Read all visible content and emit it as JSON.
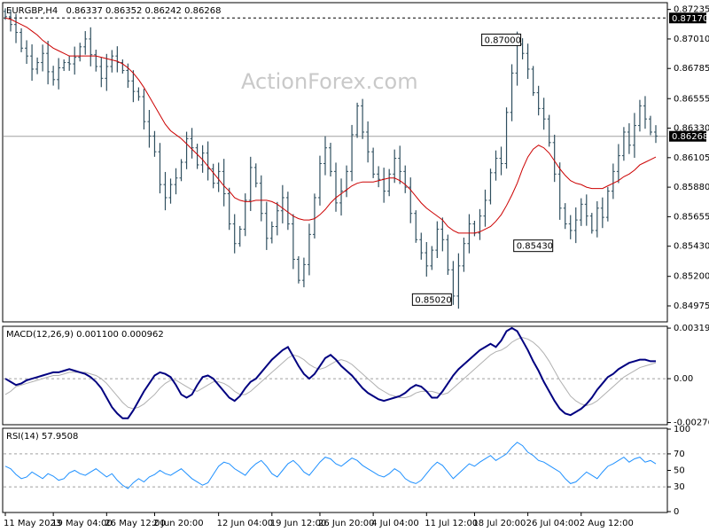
{
  "watermark": "ActionForex.com",
  "colors": {
    "bars": "#2f4f5f",
    "ma": "#cc0000",
    "macd": "#000080",
    "signal": "#b0b0b0",
    "rsi": "#1e90ff",
    "grid": "#a0a0a0",
    "frame": "#000000"
  },
  "chart_data": [
    {
      "type": "candlestick",
      "title": "EURGBP,H4",
      "header_values": "0.86337 0.86352 0.86242 0.86268",
      "ylim": [
        0.8486,
        0.8728
      ],
      "y_ticks": [
        "0.87235",
        "0.87010",
        "0.86785",
        "0.86555",
        "0.86330",
        "0.86105",
        "0.85880",
        "0.85655",
        "0.85430",
        "0.85200",
        "0.84975"
      ],
      "y_tick_values": [
        0.87235,
        0.8701,
        0.86785,
        0.86555,
        0.8633,
        0.86105,
        0.8588,
        0.85655,
        0.8543,
        0.852,
        0.84975
      ],
      "price_labels": [
        {
          "text": "0.87170",
          "value": 0.8717,
          "dashed_line": true
        },
        {
          "text": "0.86268",
          "value": 0.86268,
          "line": true
        }
      ],
      "annotations": [
        {
          "text": "0.87000",
          "value": 0.87,
          "x_index": 97
        },
        {
          "text": "0.85430",
          "value": 0.8543,
          "x_index": 103
        },
        {
          "text": "0.85020",
          "value": 0.8502,
          "x_index": 84
        }
      ],
      "close": [
        0.8718,
        0.8712,
        0.8706,
        0.8694,
        0.8688,
        0.8678,
        0.8683,
        0.869,
        0.8676,
        0.867,
        0.8679,
        0.8683,
        0.8682,
        0.8687,
        0.8695,
        0.8701,
        0.8689,
        0.868,
        0.8671,
        0.868,
        0.8688,
        0.8683,
        0.8677,
        0.8669,
        0.8661,
        0.8657,
        0.8638,
        0.8627,
        0.8615,
        0.859,
        0.858,
        0.859,
        0.8595,
        0.8607,
        0.8625,
        0.8618,
        0.8605,
        0.8614,
        0.8602,
        0.8591,
        0.86,
        0.8583,
        0.856,
        0.8545,
        0.8556,
        0.8578,
        0.8603,
        0.8591,
        0.8568,
        0.8549,
        0.8558,
        0.857,
        0.858,
        0.856,
        0.8533,
        0.8517,
        0.8529,
        0.8552,
        0.858,
        0.8606,
        0.8618,
        0.86,
        0.8576,
        0.8585,
        0.86,
        0.8628,
        0.865,
        0.863,
        0.8615,
        0.8598,
        0.8594,
        0.8585,
        0.8598,
        0.861,
        0.86,
        0.8588,
        0.8568,
        0.8548,
        0.8538,
        0.8528,
        0.854,
        0.8556,
        0.8548,
        0.8525,
        0.8505,
        0.8528,
        0.8545,
        0.856,
        0.8553,
        0.8566,
        0.8578,
        0.8599,
        0.861,
        0.8606,
        0.8645,
        0.8675,
        0.8697,
        0.869,
        0.8678,
        0.866,
        0.8648,
        0.864,
        0.8622,
        0.8598,
        0.8572,
        0.856,
        0.8555,
        0.8563,
        0.8575,
        0.8566,
        0.8555,
        0.8572,
        0.8565,
        0.8585,
        0.86,
        0.8612,
        0.863,
        0.862,
        0.8635,
        0.865,
        0.864,
        0.863,
        0.8627
      ],
      "ma_close": [
        0.8717,
        0.8716,
        0.8714,
        0.8712,
        0.871,
        0.8707,
        0.8704,
        0.87,
        0.8697,
        0.8694,
        0.8692,
        0.869,
        0.8688,
        0.8688,
        0.8688,
        0.8688,
        0.8688,
        0.8688,
        0.8687,
        0.8686,
        0.8685,
        0.8684,
        0.8682,
        0.8679,
        0.8675,
        0.867,
        0.8664,
        0.8657,
        0.865,
        0.8643,
        0.8636,
        0.8631,
        0.8628,
        0.8625,
        0.8621,
        0.8617,
        0.8613,
        0.8609,
        0.8604,
        0.8599,
        0.8594,
        0.8589,
        0.8585,
        0.858,
        0.8578,
        0.8577,
        0.8577,
        0.8578,
        0.8578,
        0.8578,
        0.8577,
        0.8575,
        0.8572,
        0.8569,
        0.8566,
        0.8564,
        0.8563,
        0.8563,
        0.8564,
        0.8567,
        0.8571,
        0.8576,
        0.858,
        0.8583,
        0.8586,
        0.8589,
        0.8591,
        0.8592,
        0.8592,
        0.8592,
        0.8593,
        0.8594,
        0.8595,
        0.8595,
        0.8593,
        0.859,
        0.8586,
        0.8581,
        0.8576,
        0.8572,
        0.8569,
        0.8566,
        0.8563,
        0.8558,
        0.8555,
        0.8553,
        0.8553,
        0.8553,
        0.8553,
        0.8554,
        0.8556,
        0.8558,
        0.8562,
        0.8567,
        0.8574,
        0.8582,
        0.8591,
        0.8602,
        0.8611,
        0.8617,
        0.862,
        0.8618,
        0.8614,
        0.8608,
        0.8602,
        0.8597,
        0.8593,
        0.8591,
        0.859,
        0.8588,
        0.8587,
        0.8587,
        0.8587,
        0.8589,
        0.8591,
        0.8593,
        0.8596,
        0.8598,
        0.8601,
        0.8605,
        0.8607,
        0.8609,
        0.8611
      ]
    },
    {
      "type": "line",
      "title": "MACD(12,26,9) 0.001100 0.000962",
      "ylim": [
        -0.00285,
        0.00325
      ],
      "y_ticks": [
        "0.00319",
        "0.00",
        "-0.002769"
      ],
      "y_tick_values": [
        0.00319,
        0.0,
        -0.002769
      ],
      "series": [
        {
          "name": "MACD",
          "values": [
            0.0,
            -0.0002,
            -0.0004,
            -0.0003,
            -0.0001,
            0.0,
            0.0001,
            0.0002,
            0.0003,
            0.0004,
            0.0004,
            0.0005,
            0.0006,
            0.0005,
            0.0004,
            0.0003,
            0.0001,
            -0.0002,
            -0.0006,
            -0.0012,
            -0.0018,
            -0.0022,
            -0.0025,
            -0.0025,
            -0.002,
            -0.0014,
            -0.0008,
            -0.0003,
            0.0002,
            0.0004,
            0.0003,
            0.0001,
            -0.0004,
            -0.001,
            -0.0012,
            -0.001,
            -0.0004,
            0.0001,
            0.0002,
            0.0,
            -0.0004,
            -0.0008,
            -0.0012,
            -0.0014,
            -0.0011,
            -0.0006,
            -0.0002,
            0.0,
            0.0004,
            0.0008,
            0.0012,
            0.0015,
            0.0018,
            0.002,
            0.0014,
            0.0008,
            0.0003,
            0.0,
            0.0003,
            0.0008,
            0.0013,
            0.0015,
            0.0012,
            0.0008,
            0.0005,
            0.0002,
            -0.0002,
            -0.0006,
            -0.0009,
            -0.0011,
            -0.0013,
            -0.0014,
            -0.0013,
            -0.0012,
            -0.0011,
            -0.0009,
            -0.0006,
            -0.0004,
            -0.0005,
            -0.0008,
            -0.0012,
            -0.0012,
            -0.0008,
            -0.0003,
            0.0002,
            0.0006,
            0.0009,
            0.0012,
            0.0015,
            0.0018,
            0.002,
            0.0022,
            0.002,
            0.0024,
            0.003,
            0.0032,
            0.003,
            0.0024,
            0.0018,
            0.0011,
            0.0005,
            -0.0002,
            -0.0008,
            -0.0014,
            -0.0019,
            -0.0022,
            -0.0023,
            -0.0021,
            -0.0019,
            -0.0016,
            -0.0012,
            -0.0007,
            -0.0003,
            0.0001,
            0.0003,
            0.0006,
            0.0008,
            0.001,
            0.0011,
            0.0012,
            0.0012,
            0.0011,
            0.0011
          ]
        },
        {
          "name": "Signal",
          "values": [
            -0.001,
            -0.0008,
            -0.0005,
            -0.0004,
            -0.0003,
            -0.0002,
            -0.0001,
            0.0,
            0.0001,
            0.0002,
            0.0002,
            0.0003,
            0.0004,
            0.0004,
            0.0004,
            0.0004,
            0.0003,
            0.0002,
            0.0,
            -0.0003,
            -0.0007,
            -0.0011,
            -0.0015,
            -0.0018,
            -0.0019,
            -0.0018,
            -0.0016,
            -0.0013,
            -0.001,
            -0.0006,
            -0.0003,
            -0.0001,
            -0.0001,
            -0.0003,
            -0.0005,
            -0.0007,
            -0.0008,
            -0.0006,
            -0.0004,
            -0.0002,
            -0.0002,
            -0.0003,
            -0.0005,
            -0.0008,
            -0.001,
            -0.001,
            -0.0008,
            -0.0005,
            -0.0002,
            0.0001,
            0.0004,
            0.0007,
            0.001,
            0.0013,
            0.0015,
            0.0014,
            0.0012,
            0.0009,
            0.0007,
            0.0006,
            0.0007,
            0.0009,
            0.0011,
            0.0012,
            0.0011,
            0.0009,
            0.0006,
            0.0003,
            0.0,
            -0.0003,
            -0.0006,
            -0.0008,
            -0.001,
            -0.0011,
            -0.0012,
            -0.0012,
            -0.0011,
            -0.0009,
            -0.0008,
            -0.0008,
            -0.0008,
            -0.0009,
            -0.001,
            -0.0009,
            -0.0006,
            -0.0003,
            0.0,
            0.0003,
            0.0006,
            0.0009,
            0.0012,
            0.0015,
            0.0017,
            0.0018,
            0.002,
            0.0023,
            0.0025,
            0.0026,
            0.0025,
            0.0023,
            0.002,
            0.0016,
            0.0011,
            0.0005,
            -0.0001,
            -0.0006,
            -0.0011,
            -0.0014,
            -0.0016,
            -0.0017,
            -0.0016,
            -0.0014,
            -0.0011,
            -0.0008,
            -0.0005,
            -0.0002,
            0.0001,
            0.0003,
            0.0005,
            0.0007,
            0.0008,
            0.0009,
            0.001
          ]
        }
      ]
    },
    {
      "type": "line",
      "title": "RSI(14) 57.9508",
      "ylim": [
        0,
        100
      ],
      "y_ticks": [
        "100",
        "70",
        "50",
        "30",
        "0"
      ],
      "y_tick_values": [
        100,
        70,
        50,
        30,
        0
      ],
      "dashed_levels": [
        70,
        30
      ],
      "series": [
        {
          "name": "RSI",
          "values": [
            55,
            52,
            45,
            40,
            42,
            48,
            44,
            40,
            46,
            43,
            38,
            40,
            47,
            50,
            46,
            44,
            48,
            52,
            47,
            42,
            46,
            38,
            32,
            28,
            35,
            40,
            36,
            42,
            45,
            50,
            46,
            44,
            48,
            52,
            46,
            40,
            36,
            32,
            35,
            45,
            55,
            60,
            58,
            52,
            48,
            44,
            52,
            58,
            62,
            55,
            46,
            42,
            50,
            58,
            62,
            56,
            48,
            44,
            52,
            60,
            66,
            64,
            58,
            55,
            60,
            65,
            62,
            56,
            52,
            48,
            44,
            42,
            46,
            52,
            48,
            40,
            36,
            34,
            38,
            46,
            54,
            60,
            56,
            48,
            40,
            46,
            52,
            58,
            55,
            60,
            64,
            68,
            62,
            66,
            70,
            78,
            84,
            80,
            72,
            68,
            62,
            60,
            56,
            52,
            48,
            40,
            34,
            36,
            42,
            48,
            44,
            40,
            48,
            55,
            58,
            62,
            66,
            60,
            64,
            66,
            60,
            62,
            58
          ]
        }
      ]
    }
  ],
  "x_ticks": [
    {
      "label": "11 May 2023",
      "index": 0
    },
    {
      "label": "19 May 04:00",
      "index": 9
    },
    {
      "label": "26 May 12:00",
      "index": 19
    },
    {
      "label": "2 Jun 20:00",
      "index": 28
    },
    {
      "label": "12 Jun 04:00",
      "index": 40
    },
    {
      "label": "19 Jun 12:00",
      "index": 50
    },
    {
      "label": "26 Jun 20:00",
      "index": 59
    },
    {
      "label": "4 Jul 04:00",
      "index": 69
    },
    {
      "label": "11 Jul 12:00",
      "index": 79
    },
    {
      "label": "18 Jul 20:00",
      "index": 88
    },
    {
      "label": "26 Jul 04:00",
      "index": 98
    },
    {
      "label": "2 Aug 12:00",
      "index": 108
    }
  ]
}
